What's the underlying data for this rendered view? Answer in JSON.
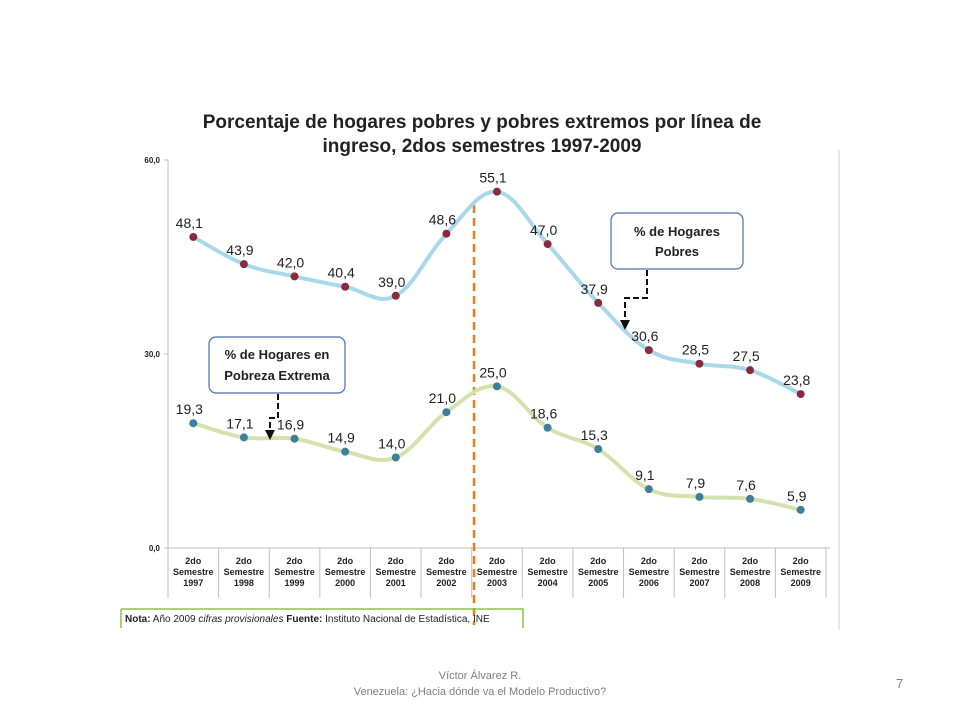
{
  "chart_data": {
    "type": "line",
    "title_line1": "Porcentaje de hogares pobres y pobres extremos por línea de",
    "title_line2": "ingreso, 2dos semestres 1997-2009",
    "categories": [
      [
        "2do",
        "Semestre",
        "1997"
      ],
      [
        "2do",
        "Semestre",
        "1998"
      ],
      [
        "2do",
        "Semestre",
        "1999"
      ],
      [
        "2do",
        "Semestre",
        "2000"
      ],
      [
        "2do",
        "Semestre",
        "2001"
      ],
      [
        "2do",
        "Semestre",
        "2002"
      ],
      [
        "2do",
        "Semestre",
        "2003"
      ],
      [
        "2do",
        "Semestre",
        "2004"
      ],
      [
        "2do",
        "Semestre",
        "2005"
      ],
      [
        "2do",
        "Semestre",
        "2006"
      ],
      [
        "2do",
        "Semestre",
        "2007"
      ],
      [
        "2do",
        "Semestre",
        "2008"
      ],
      [
        "2do",
        "Semestre",
        "2009"
      ]
    ],
    "ylim": [
      0,
      60
    ],
    "yticks": [
      0,
      30,
      60
    ],
    "ytick_labels": [
      "0,0",
      "30,0",
      "60,0"
    ],
    "series": [
      {
        "values": [
          48.1,
          43.9,
          42.0,
          40.4,
          39.0,
          48.6,
          55.1,
          47.0,
          37.9,
          30.6,
          28.5,
          27.5,
          23.8
        ],
        "labels": [
          "48,1",
          "43,9",
          "42,0",
          "40,4",
          "39,0",
          "48,6",
          "55,1",
          "47,0",
          "37,9",
          "30,6",
          "28,5",
          "27,5",
          "23,8"
        ],
        "line_color": "#a9d8ea",
        "marker_color": "#8b2a3a"
      },
      {
        "values": [
          19.3,
          17.1,
          16.9,
          14.9,
          14.0,
          21.0,
          25.0,
          18.6,
          15.3,
          9.1,
          7.9,
          7.6,
          5.9
        ],
        "labels": [
          "19,3",
          "17,1",
          "16,9",
          "14,9",
          "14,0",
          "21,0",
          "25,0",
          "18,6",
          "15,3",
          "9,1",
          "7,9",
          "7,6",
          "5,9"
        ],
        "line_color": "#d3e2ad",
        "marker_color": "#3e7e9c"
      }
    ],
    "callouts": {
      "pobres": [
        "% de Hogares",
        "Pobres"
      ],
      "extrema": [
        "% de Hogares en",
        "Pobreza Extrema"
      ]
    },
    "note": {
      "nota_label": "Nota:",
      "nota_text": "Año 2009",
      "nota_italic": "cifras provisionales",
      "fuente_label": "Fuente:",
      "fuente_text": "Instituto Nacional de Estadística, INE"
    },
    "colors": {
      "divider": "#f07a1e",
      "callout_border": "#4a6fb5",
      "note_border": "#8bc34a"
    }
  },
  "footer": {
    "author": "Víctor Álvarez R.",
    "subtitle": "Venezuela: ¿Hacia dónde va el Modelo Productivo?",
    "page": "7"
  }
}
